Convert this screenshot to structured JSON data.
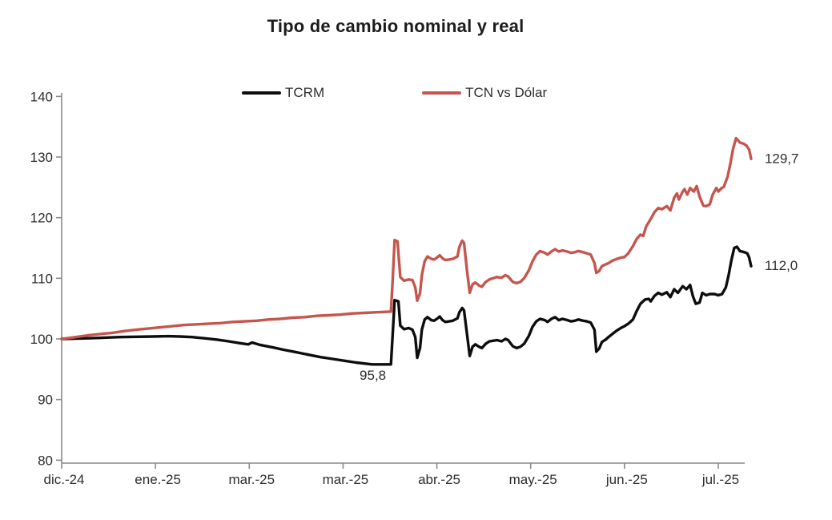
{
  "title": "Tipo de cambio nominal y real",
  "colors": {
    "tcrm": "#0d0d0d",
    "tcn": "#c4564e",
    "axis": "#8a8a8a",
    "tick_text": "#2d2d2d",
    "annotation_text": "#2d2d2d"
  },
  "legend": [
    {
      "label": "TCRM",
      "color_key": "tcrm"
    },
    {
      "label": "TCN vs Dólar",
      "color_key": "tcn"
    }
  ],
  "chart_data": {
    "type": "line",
    "title": "Tipo de cambio nominal y real",
    "x_axis": {
      "unit": "months since dic.-24",
      "tick_labels": [
        "dic.-24",
        "ene.-25",
        "mar.-25",
        "mar.-25",
        "abr.-25",
        "may.-25",
        "jun.-25",
        "jul.-25"
      ],
      "range": [
        0,
        7.37
      ]
    },
    "y_axis": {
      "ticks": [
        140,
        130,
        120,
        110,
        100,
        90,
        80
      ],
      "range": [
        80,
        140
      ],
      "grid": false
    },
    "legend_position": "top",
    "series": [
      {
        "name": "TCRM",
        "color_key": "tcrm",
        "points": [
          [
            0,
            100
          ],
          [
            0.28,
            100.1
          ],
          [
            0.62,
            100.3
          ],
          [
            0.97,
            100.4
          ],
          [
            1.14,
            100.45
          ],
          [
            1.26,
            100.4
          ],
          [
            1.39,
            100.3
          ],
          [
            1.52,
            100.1
          ],
          [
            1.65,
            99.9
          ],
          [
            1.78,
            99.6
          ],
          [
            1.9,
            99.3
          ],
          [
            1.99,
            99.1
          ],
          [
            2.03,
            99.4
          ],
          [
            2.12,
            99
          ],
          [
            2.25,
            98.6
          ],
          [
            2.37,
            98.2
          ],
          [
            2.5,
            97.8
          ],
          [
            2.63,
            97.4
          ],
          [
            2.76,
            97
          ],
          [
            2.89,
            96.7
          ],
          [
            3.01,
            96.4
          ],
          [
            3.14,
            96.1
          ],
          [
            3.31,
            95.8
          ],
          [
            3.51,
            95.8
          ],
          [
            3.53,
            101
          ],
          [
            3.55,
            106.4
          ],
          [
            3.59,
            106.2
          ],
          [
            3.61,
            102.2
          ],
          [
            3.65,
            101.6
          ],
          [
            3.7,
            101.8
          ],
          [
            3.74,
            101.5
          ],
          [
            3.77,
            100.3
          ],
          [
            3.79,
            96.9
          ],
          [
            3.82,
            98.5
          ],
          [
            3.84,
            101.5
          ],
          [
            3.87,
            103.2
          ],
          [
            3.9,
            103.6
          ],
          [
            3.94,
            103.1
          ],
          [
            3.97,
            103
          ],
          [
            4,
            103.3
          ],
          [
            4.03,
            103.7
          ],
          [
            4.06,
            103.1
          ],
          [
            4.09,
            102.8
          ],
          [
            4.13,
            102.9
          ],
          [
            4.17,
            103
          ],
          [
            4.22,
            103.4
          ],
          [
            4.24,
            104.4
          ],
          [
            4.27,
            105.1
          ],
          [
            4.29,
            104.7
          ],
          [
            4.32,
            101
          ],
          [
            4.35,
            97.2
          ],
          [
            4.38,
            98.7
          ],
          [
            4.41,
            99.1
          ],
          [
            4.45,
            98.7
          ],
          [
            4.48,
            98.5
          ],
          [
            4.52,
            99.2
          ],
          [
            4.56,
            99.6
          ],
          [
            4.6,
            99.7
          ],
          [
            4.64,
            99.8
          ],
          [
            4.69,
            99.6
          ],
          [
            4.73,
            100
          ],
          [
            4.76,
            99.8
          ],
          [
            4.81,
            98.8
          ],
          [
            4.85,
            98.5
          ],
          [
            4.89,
            98.7
          ],
          [
            4.93,
            99.2
          ],
          [
            4.98,
            100.5
          ],
          [
            5.02,
            102
          ],
          [
            5.06,
            102.9
          ],
          [
            5.1,
            103.3
          ],
          [
            5.15,
            103.1
          ],
          [
            5.18,
            102.8
          ],
          [
            5.22,
            103.3
          ],
          [
            5.26,
            103.6
          ],
          [
            5.3,
            103.1
          ],
          [
            5.34,
            103.3
          ],
          [
            5.39,
            103.1
          ],
          [
            5.43,
            102.9
          ],
          [
            5.47,
            103
          ],
          [
            5.51,
            103.2
          ],
          [
            5.56,
            103
          ],
          [
            5.6,
            102.9
          ],
          [
            5.64,
            102.7
          ],
          [
            5.68,
            101.5
          ],
          [
            5.7,
            97.9
          ],
          [
            5.73,
            98.4
          ],
          [
            5.76,
            99.5
          ],
          [
            5.8,
            99.9
          ],
          [
            5.83,
            100.3
          ],
          [
            5.87,
            100.8
          ],
          [
            5.92,
            101.4
          ],
          [
            5.96,
            101.8
          ],
          [
            6,
            102.1
          ],
          [
            6.04,
            102.5
          ],
          [
            6.09,
            103.2
          ],
          [
            6.13,
            104.6
          ],
          [
            6.17,
            105.8
          ],
          [
            6.22,
            106.5
          ],
          [
            6.26,
            106.6
          ],
          [
            6.28,
            106.2
          ],
          [
            6.32,
            107.1
          ],
          [
            6.36,
            107.6
          ],
          [
            6.4,
            107.3
          ],
          [
            6.45,
            107.7
          ],
          [
            6.49,
            106.9
          ],
          [
            6.53,
            108.2
          ],
          [
            6.57,
            107.6
          ],
          [
            6.62,
            108.7
          ],
          [
            6.66,
            108.2
          ],
          [
            6.7,
            108.9
          ],
          [
            6.73,
            107
          ],
          [
            6.76,
            105.8
          ],
          [
            6.8,
            106
          ],
          [
            6.83,
            107.6
          ],
          [
            6.87,
            107.2
          ],
          [
            6.91,
            107.4
          ],
          [
            6.96,
            107.4
          ],
          [
            7,
            107.2
          ],
          [
            7.04,
            107.4
          ],
          [
            7.08,
            108.5
          ],
          [
            7.11,
            110.5
          ],
          [
            7.14,
            113
          ],
          [
            7.17,
            115
          ],
          [
            7.2,
            115.2
          ],
          [
            7.23,
            114.5
          ],
          [
            7.28,
            114.3
          ],
          [
            7.31,
            114.1
          ],
          [
            7.33,
            113.4
          ],
          [
            7.35,
            112
          ]
        ]
      },
      {
        "name": "TCN vs Dólar",
        "color_key": "tcn",
        "points": [
          [
            0,
            100
          ],
          [
            0.15,
            100.3
          ],
          [
            0.28,
            100.6
          ],
          [
            0.41,
            100.8
          ],
          [
            0.54,
            101
          ],
          [
            0.67,
            101.3
          ],
          [
            0.79,
            101.5
          ],
          [
            0.92,
            101.7
          ],
          [
            1.05,
            101.9
          ],
          [
            1.18,
            102.1
          ],
          [
            1.31,
            102.3
          ],
          [
            1.44,
            102.4
          ],
          [
            1.56,
            102.5
          ],
          [
            1.69,
            102.6
          ],
          [
            1.82,
            102.8
          ],
          [
            1.95,
            102.9
          ],
          [
            2.08,
            103
          ],
          [
            2.2,
            103.2
          ],
          [
            2.33,
            103.3
          ],
          [
            2.46,
            103.5
          ],
          [
            2.59,
            103.6
          ],
          [
            2.72,
            103.8
          ],
          [
            2.84,
            103.9
          ],
          [
            2.97,
            104
          ],
          [
            3.1,
            104.2
          ],
          [
            3.23,
            104.3
          ],
          [
            3.36,
            104.4
          ],
          [
            3.51,
            104.5
          ],
          [
            3.53,
            110
          ],
          [
            3.55,
            116.3
          ],
          [
            3.58,
            116.1
          ],
          [
            3.61,
            110.2
          ],
          [
            3.65,
            109.6
          ],
          [
            3.7,
            109.8
          ],
          [
            3.74,
            109.7
          ],
          [
            3.77,
            108.5
          ],
          [
            3.79,
            106.3
          ],
          [
            3.82,
            107.5
          ],
          [
            3.84,
            110.5
          ],
          [
            3.87,
            112.8
          ],
          [
            3.9,
            113.6
          ],
          [
            3.94,
            113.2
          ],
          [
            3.97,
            113.1
          ],
          [
            4,
            113.4
          ],
          [
            4.03,
            113.8
          ],
          [
            4.06,
            113.3
          ],
          [
            4.09,
            113
          ],
          [
            4.13,
            113.1
          ],
          [
            4.17,
            113.2
          ],
          [
            4.22,
            113.6
          ],
          [
            4.24,
            115.2
          ],
          [
            4.27,
            116.2
          ],
          [
            4.29,
            115.8
          ],
          [
            4.32,
            111.5
          ],
          [
            4.35,
            107.6
          ],
          [
            4.38,
            109
          ],
          [
            4.41,
            109.3
          ],
          [
            4.45,
            108.8
          ],
          [
            4.48,
            108.6
          ],
          [
            4.52,
            109.4
          ],
          [
            4.56,
            109.8
          ],
          [
            4.6,
            110
          ],
          [
            4.64,
            110.2
          ],
          [
            4.69,
            110.1
          ],
          [
            4.73,
            110.5
          ],
          [
            4.76,
            110.3
          ],
          [
            4.81,
            109.4
          ],
          [
            4.85,
            109.2
          ],
          [
            4.89,
            109.4
          ],
          [
            4.93,
            110
          ],
          [
            4.98,
            111.3
          ],
          [
            5.02,
            112.8
          ],
          [
            5.06,
            113.9
          ],
          [
            5.1,
            114.5
          ],
          [
            5.15,
            114.2
          ],
          [
            5.18,
            113.9
          ],
          [
            5.22,
            114.4
          ],
          [
            5.26,
            114.8
          ],
          [
            5.3,
            114.4
          ],
          [
            5.34,
            114.6
          ],
          [
            5.39,
            114.4
          ],
          [
            5.43,
            114.2
          ],
          [
            5.47,
            114.3
          ],
          [
            5.51,
            114.5
          ],
          [
            5.56,
            114.3
          ],
          [
            5.6,
            114.1
          ],
          [
            5.64,
            113.9
          ],
          [
            5.68,
            112.5
          ],
          [
            5.7,
            110.9
          ],
          [
            5.73,
            111.2
          ],
          [
            5.76,
            112
          ],
          [
            5.8,
            112.3
          ],
          [
            5.83,
            112.5
          ],
          [
            5.87,
            112.9
          ],
          [
            5.92,
            113.2
          ],
          [
            5.96,
            113.4
          ],
          [
            6,
            113.5
          ],
          [
            6.04,
            114.1
          ],
          [
            6.09,
            115.3
          ],
          [
            6.13,
            116.5
          ],
          [
            6.17,
            117.2
          ],
          [
            6.2,
            117
          ],
          [
            6.23,
            118.5
          ],
          [
            6.28,
            119.8
          ],
          [
            6.32,
            120.9
          ],
          [
            6.36,
            121.6
          ],
          [
            6.4,
            121.4
          ],
          [
            6.45,
            121.9
          ],
          [
            6.49,
            121.2
          ],
          [
            6.53,
            123.3
          ],
          [
            6.56,
            124
          ],
          [
            6.58,
            123
          ],
          [
            6.62,
            124.3
          ],
          [
            6.64,
            124.7
          ],
          [
            6.67,
            123.8
          ],
          [
            6.7,
            124.9
          ],
          [
            6.74,
            124.3
          ],
          [
            6.77,
            125.2
          ],
          [
            6.8,
            123.5
          ],
          [
            6.84,
            122
          ],
          [
            6.87,
            121.9
          ],
          [
            6.91,
            122.2
          ],
          [
            6.94,
            123.8
          ],
          [
            6.98,
            124.9
          ],
          [
            7,
            124.3
          ],
          [
            7.03,
            124.8
          ],
          [
            7.06,
            125.1
          ],
          [
            7.1,
            126.8
          ],
          [
            7.13,
            129
          ],
          [
            7.16,
            131.5
          ],
          [
            7.19,
            133.1
          ],
          [
            7.23,
            132.4
          ],
          [
            7.27,
            132.2
          ],
          [
            7.3,
            131.9
          ],
          [
            7.33,
            131.2
          ],
          [
            7.35,
            129.7
          ]
        ]
      }
    ],
    "annotations": [
      {
        "text": "95,8",
        "series": "TCRM",
        "t": 3.36,
        "v": 95.8,
        "placement": "below"
      },
      {
        "text": "112,0",
        "series": "TCRM",
        "t": 7.35,
        "v": 112.0,
        "placement": "right"
      },
      {
        "text": "129,7",
        "series": "TCN vs Dólar",
        "t": 7.35,
        "v": 129.7,
        "placement": "right"
      }
    ]
  }
}
